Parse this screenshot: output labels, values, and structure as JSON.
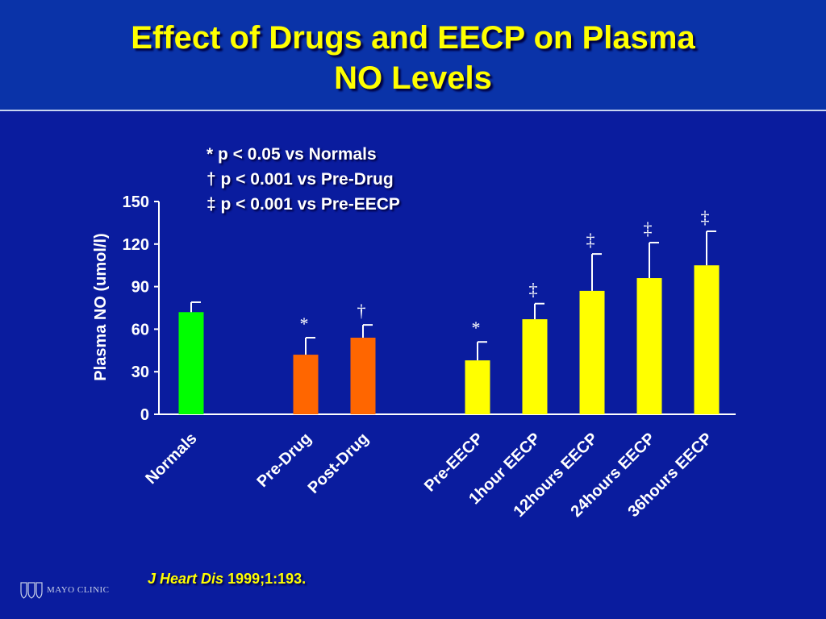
{
  "slide": {
    "title_line1": "Effect of Drugs and EECP on Plasma",
    "title_line2": "NO Levels",
    "legend": [
      "* p < 0.05 vs Normals",
      "† p < 0.001 vs Pre-Drug",
      "‡ p < 0.001 vs Pre-EECP"
    ],
    "citation_journal": "J Heart Dis",
    "citation_ref": "1999;1:193.",
    "logo_text": "MAYO CLINIC",
    "logo_icon": "mayo-shield-icon"
  },
  "chart_data": {
    "type": "bar",
    "ylabel": "Plasma NO (umol/l)",
    "ylim": [
      0,
      150
    ],
    "yticks": [
      0,
      30,
      60,
      90,
      120,
      150
    ],
    "categories": [
      "Normals",
      "Pre-Drug",
      "Post-Drug",
      "Pre-EECP",
      "1hour EECP",
      "12hours EECP",
      "24hours EECP",
      "36hours EECP"
    ],
    "values": [
      72,
      42,
      54,
      38,
      67,
      87,
      96,
      105
    ],
    "error": [
      7,
      12,
      9,
      13,
      11,
      26,
      25,
      24
    ],
    "significance": [
      "",
      "*",
      "†",
      "*",
      "‡",
      "‡",
      "‡",
      "‡"
    ],
    "colors": [
      "#00ff00",
      "#ff6600",
      "#ff6600",
      "#ffff00",
      "#ffff00",
      "#ffff00",
      "#ffff00",
      "#ffff00"
    ],
    "grid": false,
    "legend_position": "top-left"
  }
}
